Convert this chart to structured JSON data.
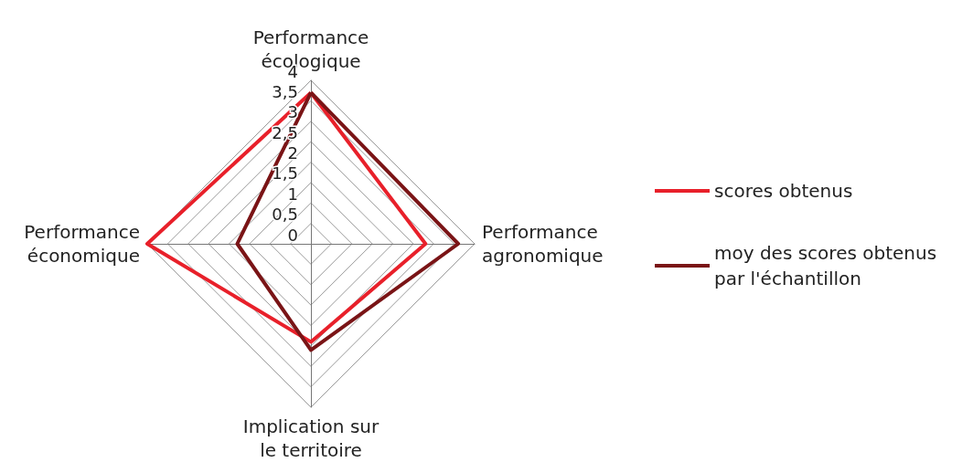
{
  "chart_data": {
    "type": "radar",
    "categories": [
      "Performance écologique",
      "Performance agronomique",
      "Implication sur le territoire",
      "Performance économique"
    ],
    "series": [
      {
        "name": "scores obtenus",
        "color": "#e8202a",
        "values": [
          3.7,
          2.8,
          2.4,
          4
        ]
      },
      {
        "name": "moy des scores obtenus par l'échantillon",
        "color": "#7a1416",
        "values": [
          3.7,
          3.6,
          2.6,
          1.8
        ]
      }
    ],
    "ylim": [
      0,
      4
    ],
    "yticks": [
      0,
      {
        "value": 0.5,
        "label": "0,5"
      },
      1,
      {
        "value": 1.5,
        "label": "1,5"
      },
      2,
      {
        "value": 2.5,
        "label": "2,5"
      },
      3,
      {
        "value": 3.5,
        "label": "3,5"
      },
      4
    ],
    "grid": true,
    "legend": "right",
    "marker": "none",
    "line_style": "solid"
  }
}
